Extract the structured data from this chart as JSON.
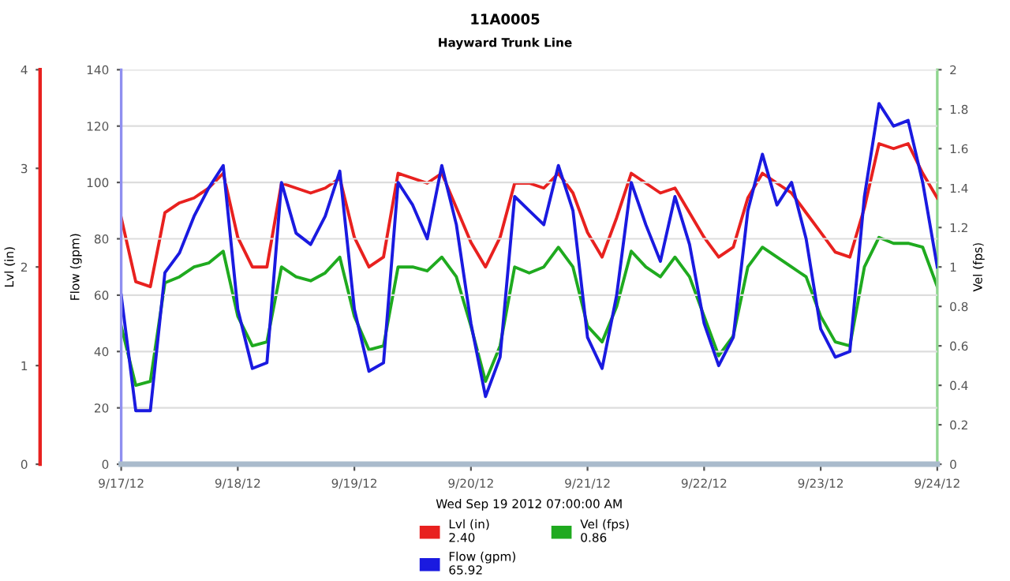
{
  "chart_data": {
    "type": "line",
    "title": "11A0005",
    "subtitle": "Hayward Trunk Line",
    "xlabel": "Wed Sep 19 2012 07:00:00 AM",
    "ylabel": "Flow (gpm)",
    "y2label": "Vel (fps)",
    "y3label": "Lvl (in)",
    "x": [
      "2012-09-17T00:00",
      "2012-09-17T03:00",
      "2012-09-17T06:00",
      "2012-09-17T09:00",
      "2012-09-17T12:00",
      "2012-09-17T15:00",
      "2012-09-17T18:00",
      "2012-09-17T21:00",
      "2012-09-18T00:00",
      "2012-09-18T03:00",
      "2012-09-18T06:00",
      "2012-09-18T09:00",
      "2012-09-18T12:00",
      "2012-09-18T15:00",
      "2012-09-18T18:00",
      "2012-09-18T21:00",
      "2012-09-19T00:00",
      "2012-09-19T03:00",
      "2012-09-19T06:00",
      "2012-09-19T09:00",
      "2012-09-19T12:00",
      "2012-09-19T15:00",
      "2012-09-19T18:00",
      "2012-09-19T21:00",
      "2012-09-20T00:00",
      "2012-09-20T03:00",
      "2012-09-20T06:00",
      "2012-09-20T09:00",
      "2012-09-20T12:00",
      "2012-09-20T15:00",
      "2012-09-20T18:00",
      "2012-09-20T21:00",
      "2012-09-21T00:00",
      "2012-09-21T03:00",
      "2012-09-21T06:00",
      "2012-09-21T09:00",
      "2012-09-21T12:00",
      "2012-09-21T15:00",
      "2012-09-21T18:00",
      "2012-09-21T21:00",
      "2012-09-22T00:00",
      "2012-09-22T03:00",
      "2012-09-22T06:00",
      "2012-09-22T09:00",
      "2012-09-22T12:00",
      "2012-09-22T15:00",
      "2012-09-22T18:00",
      "2012-09-22T21:00",
      "2012-09-23T00:00",
      "2012-09-23T03:00",
      "2012-09-23T06:00",
      "2012-09-23T09:00",
      "2012-09-23T12:00",
      "2012-09-23T15:00",
      "2012-09-23T18:00",
      "2012-09-23T21:00",
      "2012-09-24T00:00"
    ],
    "series": [
      {
        "name": "Lvl (in)\n2.40",
        "color": "#e8211f",
        "axis": "y3",
        "values": [
          2.5,
          1.85,
          1.8,
          2.55,
          2.65,
          2.7,
          2.8,
          2.95,
          2.3,
          2.0,
          2.0,
          2.85,
          2.8,
          2.75,
          2.8,
          2.9,
          2.3,
          2.0,
          2.1,
          2.95,
          2.9,
          2.85,
          2.95,
          2.6,
          2.25,
          2.0,
          2.3,
          2.85,
          2.85,
          2.8,
          2.95,
          2.75,
          2.35,
          2.1,
          2.5,
          2.95,
          2.85,
          2.75,
          2.8,
          2.55,
          2.3,
          2.1,
          2.2,
          2.7,
          2.95,
          2.85,
          2.75,
          2.55,
          2.35,
          2.15,
          2.1,
          2.6,
          3.25,
          3.2,
          3.25,
          2.95,
          2.7
        ]
      },
      {
        "name": "Vel (fps)\n0.86",
        "color": "#1faa1f",
        "axis": "y2",
        "values": [
          0.7,
          0.4,
          0.42,
          0.92,
          0.95,
          1.0,
          1.02,
          1.08,
          0.75,
          0.6,
          0.62,
          1.0,
          0.95,
          0.93,
          0.97,
          1.05,
          0.75,
          0.58,
          0.6,
          1.0,
          1.0,
          0.98,
          1.05,
          0.95,
          0.7,
          0.42,
          0.6,
          1.0,
          0.97,
          1.0,
          1.1,
          1.0,
          0.7,
          0.62,
          0.8,
          1.08,
          1.0,
          0.95,
          1.05,
          0.95,
          0.75,
          0.55,
          0.65,
          1.0,
          1.1,
          1.05,
          1.0,
          0.95,
          0.75,
          0.62,
          0.6,
          1.0,
          1.15,
          1.12,
          1.12,
          1.1,
          0.9
        ]
      },
      {
        "name": "Flow (gpm)\n65.92",
        "color": "#1a1ae0",
        "values": [
          60,
          19,
          19,
          68,
          75,
          88,
          98,
          106,
          55,
          34,
          36,
          100,
          82,
          78,
          88,
          104,
          55,
          33,
          36,
          100,
          92,
          80,
          106,
          85,
          50,
          24,
          38,
          95,
          90,
          85,
          106,
          90,
          45,
          34,
          60,
          100,
          85,
          72,
          95,
          78,
          50,
          35,
          45,
          90,
          110,
          92,
          100,
          80,
          48,
          38,
          40,
          95,
          128,
          120,
          122,
          100,
          70
        ]
      }
    ],
    "xlim": [
      "2012-09-17",
      "2012-09-24"
    ],
    "xticks": [
      {
        "value": "2012-09-17",
        "label": "9/17/12"
      },
      {
        "value": "2012-09-18",
        "label": "9/18/12"
      },
      {
        "value": "2012-09-19",
        "label": "9/19/12"
      },
      {
        "value": "2012-09-20",
        "label": "9/20/12"
      },
      {
        "value": "2012-09-21",
        "label": "9/21/12"
      },
      {
        "value": "2012-09-22",
        "label": "9/22/12"
      },
      {
        "value": "2012-09-23",
        "label": "9/23/12"
      },
      {
        "value": "2012-09-24",
        "label": "9/24/12"
      }
    ],
    "ylim": [
      0,
      140
    ],
    "yticks": [
      0,
      20,
      40,
      60,
      80,
      100,
      120,
      140
    ],
    "y2lim": [
      0,
      2
    ],
    "y2ticks": [
      0,
      0.2,
      0.4,
      0.6,
      0.8,
      1,
      1.2,
      1.4,
      1.6,
      1.8,
      2
    ],
    "y3lim": [
      0,
      4
    ],
    "y3ticks": [
      0,
      1,
      2,
      3,
      4
    ],
    "grid": "y",
    "legend": "bottom",
    "marker": "none",
    "line_style": "solid"
  }
}
